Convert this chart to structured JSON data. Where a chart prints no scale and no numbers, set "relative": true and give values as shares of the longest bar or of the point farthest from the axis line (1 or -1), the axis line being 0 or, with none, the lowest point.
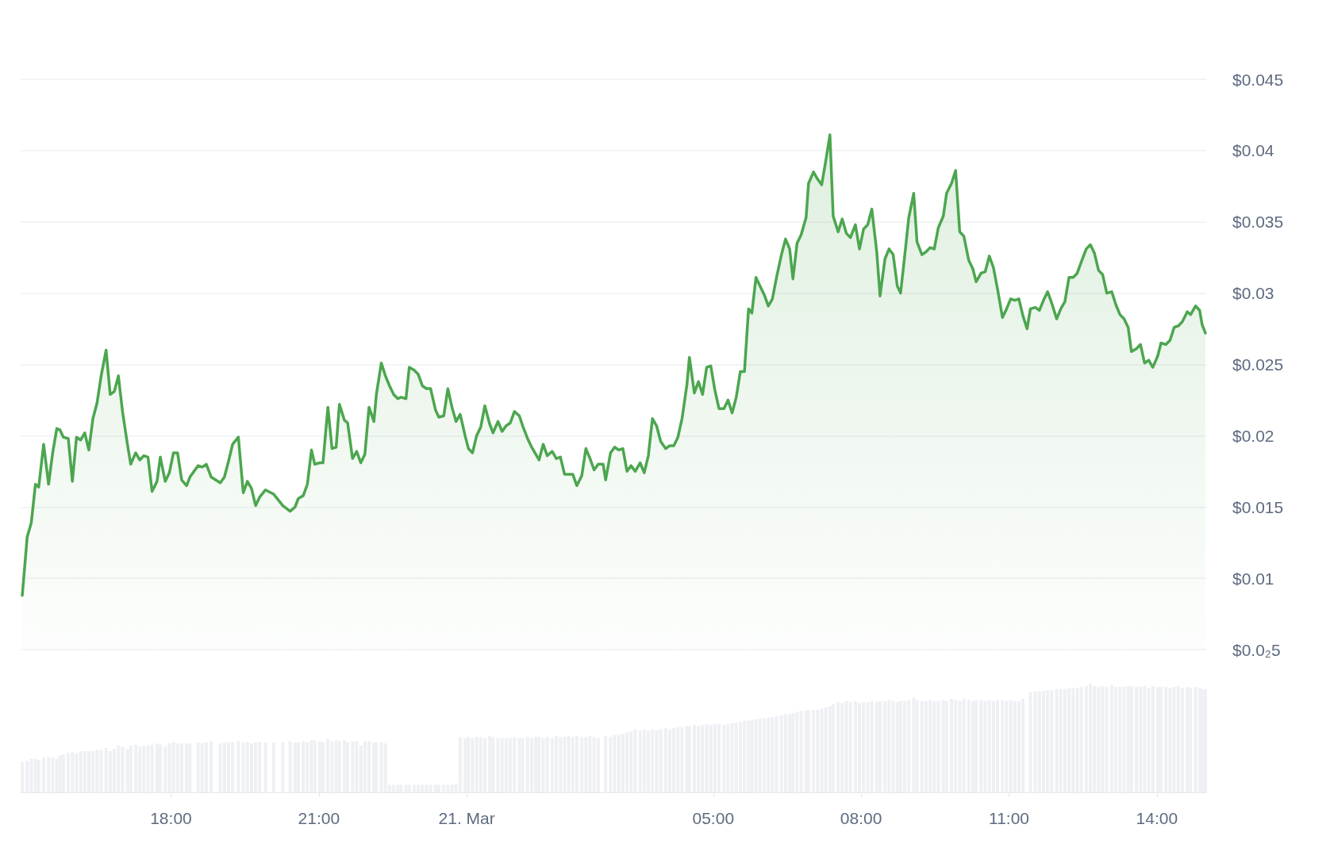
{
  "chart_data": [
    {
      "type": "area",
      "x": [
        "--03-20T14:59",
        "--03-20T15:05",
        "--03-20T15:10",
        "--03-20T15:15",
        "--03-20T15:19",
        "--03-20T15:25",
        "--03-20T15:31",
        "--03-20T15:36",
        "--03-20T15:41",
        "--03-20T15:45",
        "--03-20T15:49",
        "--03-20T15:55",
        "--03-20T16:00",
        "--03-20T16:05",
        "--03-20T16:10",
        "--03-20T16:15",
        "--03-20T16:20",
        "--03-20T16:25",
        "--03-20T16:30",
        "--03-20T16:35",
        "--03-20T16:41",
        "--03-20T16:46",
        "--03-20T16:51",
        "--03-20T16:56",
        "--03-20T17:01",
        "--03-20T17:07",
        "--03-20T17:11",
        "--03-20T17:17",
        "--03-20T17:22",
        "--03-20T17:27",
        "--03-20T17:32",
        "--03-20T17:37",
        "--03-20T17:43",
        "--03-20T17:47",
        "--03-20T17:53",
        "--03-20T17:58",
        "--03-20T18:03",
        "--03-20T18:08",
        "--03-20T18:13",
        "--03-20T18:19",
        "--03-20T18:23",
        "--03-20T18:33",
        "--03-20T18:38",
        "--03-20T18:43",
        "--03-20T18:49",
        "--03-20T19:00",
        "--03-20T19:05",
        "--03-20T19:10",
        "--03-20T19:15",
        "--03-20T19:22",
        "--03-20T19:28",
        "--03-20T19:33",
        "--03-20T19:38",
        "--03-20T19:43",
        "--03-20T19:48",
        "--03-20T19:55",
        "--03-20T20:05",
        "--03-20T20:16",
        "--03-20T20:25",
        "--03-20T20:31",
        "--03-20T20:35",
        "--03-20T20:41",
        "--03-20T20:46",
        "--03-20T20:51",
        "--03-20T20:55",
        "--03-20T21:01",
        "--03-20T21:05",
        "--03-20T21:11",
        "--03-20T21:16",
        "--03-20T21:21",
        "--03-20T21:25",
        "--03-20T21:31",
        "--03-20T21:35",
        "--03-20T21:41",
        "--03-20T21:46",
        "--03-20T21:51",
        "--03-20T21:56",
        "--03-20T22:01",
        "--03-20T22:07",
        "--03-20T22:10",
        "--03-20T22:16",
        "--03-20T22:21",
        "--03-20T22:26",
        "--03-20T22:31",
        "--03-20T22:36",
        "--03-20T22:40",
        "--03-20T22:46",
        "--03-20T22:50",
        "--03-20T22:56",
        "--03-20T23:01",
        "--03-20T23:06",
        "--03-20T23:11",
        "--03-20T23:16",
        "--03-20T23:22",
        "--03-20T23:26",
        "--03-20T23:32",
        "--03-20T23:37",
        "--03-20T23:42",
        "--03-20T23:47",
        "--03-20T23:52",
        "--03-20T23:58",
        "--03-21T00:02",
        "--03-21T00:07",
        "--03-21T00:12",
        "--03-21T00:17",
        "--03-21T00:22",
        "--03-21T00:28",
        "--03-21T00:32",
        "--03-21T00:38",
        "--03-21T00:43",
        "--03-21T00:48",
        "--03-21T00:53",
        "--03-21T00:58",
        "--03-21T01:04",
        "--03-21T01:08",
        "--03-21T01:14",
        "--03-21T01:19",
        "--03-21T01:24",
        "--03-21T01:28",
        "--03-21T01:33",
        "--03-21T01:38",
        "--03-21T01:44",
        "--03-21T01:49",
        "--03-21T01:54",
        "--03-21T01:59",
        "--03-21T02:04",
        "--03-21T02:09",
        "--03-21T02:14",
        "--03-21T02:20",
        "--03-21T02:25",
        "--03-21T02:30",
        "--03-21T02:35",
        "--03-21T02:40",
        "--03-21T02:46",
        "--03-21T02:49",
        "--03-21T02:55",
        "--03-21T03:00",
        "--03-21T03:05",
        "--03-21T03:10",
        "--03-21T03:15",
        "--03-21T03:20",
        "--03-21T03:25",
        "--03-21T03:31",
        "--03-21T03:36",
        "--03-21T03:41",
        "--03-21T03:46",
        "--03-21T03:51",
        "--03-21T03:56",
        "--03-21T04:02",
        "--03-21T04:07",
        "--03-21T04:12",
        "--03-21T04:17",
        "--03-21T04:22",
        "--03-21T04:28",
        "--03-21T04:31",
        "--03-21T04:37",
        "--03-21T04:42",
        "--03-21T04:47",
        "--03-21T04:52",
        "--03-21T04:57",
        "--03-21T05:02",
        "--03-21T05:07",
        "--03-21T05:13",
        "--03-21T05:18",
        "--03-21T05:23",
        "--03-21T05:28",
        "--03-21T05:33",
        "--03-21T05:38",
        "--03-21T05:43",
        "--03-21T05:47",
        "--03-21T05:52",
        "--03-21T05:57",
        "--03-21T06:02",
        "--03-21T06:07",
        "--03-21T06:12",
        "--03-21T06:17",
        "--03-21T06:23",
        "--03-21T06:28",
        "--03-21T06:33",
        "--03-21T06:37",
        "--03-21T06:42",
        "--03-21T06:47",
        "--03-21T06:53",
        "--03-21T06:56",
        "--03-21T07:02",
        "--03-21T07:07",
        "--03-21T07:12",
        "--03-21T07:17",
        "--03-21T07:22",
        "--03-21T07:26",
        "--03-21T07:32",
        "--03-21T07:37",
        "--03-21T07:42",
        "--03-21T07:47",
        "--03-21T07:53",
        "--03-21T07:58",
        "--03-21T08:03",
        "--03-21T08:08",
        "--03-21T08:13",
        "--03-21T08:19",
        "--03-21T08:23",
        "--03-21T08:29",
        "--03-21T08:34",
        "--03-21T08:39",
        "--03-21T08:44",
        "--03-21T08:48",
        "--03-21T08:53",
        "--03-21T08:58",
        "--03-21T09:04",
        "--03-21T09:08",
        "--03-21T09:14",
        "--03-21T09:19",
        "--03-21T09:24",
        "--03-21T09:29",
        "--03-21T09:34",
        "--03-21T09:40",
        "--03-21T09:44",
        "--03-21T09:50",
        "--03-21T09:55",
        "--03-21T10:00",
        "--03-21T10:05",
        "--03-21T10:11",
        "--03-21T10:16",
        "--03-21T10:20",
        "--03-21T10:26",
        "--03-21T10:31",
        "--03-21T10:36",
        "--03-21T10:41",
        "--03-21T10:46",
        "--03-21T10:52",
        "--03-21T10:57",
        "--03-21T11:02",
        "--03-21T11:07",
        "--03-21T11:12",
        "--03-21T11:17",
        "--03-21T11:22",
        "--03-21T11:26",
        "--03-21T11:32",
        "--03-21T11:37",
        "--03-21T11:42",
        "--03-21T11:47",
        "--03-21T11:52",
        "--03-21T11:58",
        "--03-21T12:03",
        "--03-21T12:08",
        "--03-21T12:13",
        "--03-21T12:18",
        "--03-21T12:23",
        "--03-21T12:28",
        "--03-21T12:34",
        "--03-21T12:39",
        "--03-21T12:44",
        "--03-21T12:49",
        "--03-21T12:54",
        "--03-21T12:59",
        "--03-21T13:05",
        "--03-21T13:10",
        "--03-21T13:15",
        "--03-21T13:20",
        "--03-21T13:25",
        "--03-21T13:29",
        "--03-21T13:35",
        "--03-21T13:40",
        "--03-21T13:45",
        "--03-21T13:50",
        "--03-21T13:55",
        "--03-21T14:01",
        "--03-21T14:05",
        "--03-21T14:11",
        "--03-21T14:16",
        "--03-21T14:21",
        "--03-21T14:26",
        "--03-21T14:31",
        "--03-21T14:37",
        "--03-21T14:41",
        "--03-21T14:47",
        "--03-21T14:52",
        "--03-21T14:55",
        "--03-21T14:59"
      ],
      "series": [
        {
          "color": "#4ca64f",
          "values": [
            0.0088,
            0.0129,
            0.0139,
            0.0166,
            0.0164,
            0.0194,
            0.0166,
            0.0188,
            0.0205,
            0.0204,
            0.0199,
            0.0198,
            0.0168,
            0.0199,
            0.0197,
            0.0202,
            0.019,
            0.0212,
            0.0223,
            0.0242,
            0.026,
            0.0229,
            0.0231,
            0.0242,
            0.0217,
            0.0194,
            0.018,
            0.0188,
            0.0183,
            0.0186,
            0.0185,
            0.0161,
            0.0168,
            0.0185,
            0.0168,
            0.0174,
            0.0188,
            0.0188,
            0.0169,
            0.0165,
            0.0171,
            0.0179,
            0.0178,
            0.018,
            0.0171,
            0.0167,
            0.0171,
            0.0182,
            0.0194,
            0.0199,
            0.016,
            0.0168,
            0.0163,
            0.0151,
            0.0157,
            0.0162,
            0.0159,
            0.0151,
            0.0147,
            0.015,
            0.0156,
            0.0158,
            0.0166,
            0.019,
            0.018,
            0.0181,
            0.0181,
            0.022,
            0.0191,
            0.0192,
            0.0222,
            0.0211,
            0.0209,
            0.0184,
            0.0189,
            0.0181,
            0.0187,
            0.022,
            0.021,
            0.0229,
            0.0251,
            0.0242,
            0.0235,
            0.0229,
            0.0226,
            0.0227,
            0.0226,
            0.0248,
            0.0246,
            0.0243,
            0.0235,
            0.0233,
            0.0233,
            0.0218,
            0.0213,
            0.0214,
            0.0233,
            0.022,
            0.021,
            0.0215,
            0.02,
            0.0191,
            0.0188,
            0.02,
            0.0206,
            0.0221,
            0.0208,
            0.0202,
            0.021,
            0.0203,
            0.0207,
            0.0209,
            0.0217,
            0.0214,
            0.0207,
            0.0198,
            0.0192,
            0.0187,
            0.0183,
            0.0194,
            0.0186,
            0.0189,
            0.0184,
            0.0185,
            0.0173,
            0.0173,
            0.0173,
            0.0165,
            0.0172,
            0.0191,
            0.0184,
            0.0176,
            0.018,
            0.018,
            0.0169,
            0.0188,
            0.0192,
            0.019,
            0.0191,
            0.0175,
            0.0179,
            0.0175,
            0.0181,
            0.0174,
            0.0186,
            0.0212,
            0.0207,
            0.0196,
            0.0191,
            0.0193,
            0.0193,
            0.0199,
            0.0212,
            0.0236,
            0.0255,
            0.023,
            0.0238,
            0.0229,
            0.0248,
            0.0249,
            0.0232,
            0.0219,
            0.0219,
            0.0225,
            0.0216,
            0.0227,
            0.0245,
            0.0245,
            0.0289,
            0.0286,
            0.0311,
            0.0305,
            0.0299,
            0.0291,
            0.0296,
            0.0311,
            0.0327,
            0.0338,
            0.0331,
            0.031,
            0.0335,
            0.0341,
            0.0353,
            0.0377,
            0.0385,
            0.038,
            0.0376,
            0.0393,
            0.0411,
            0.0354,
            0.0343,
            0.0352,
            0.0342,
            0.0339,
            0.0348,
            0.0331,
            0.0345,
            0.0348,
            0.0359,
            0.0329,
            0.0298,
            0.0324,
            0.0331,
            0.0327,
            0.0305,
            0.03,
            0.0326,
            0.0353,
            0.037,
            0.0336,
            0.0327,
            0.0329,
            0.0332,
            0.0331,
            0.0346,
            0.0354,
            0.037,
            0.0377,
            0.0386,
            0.0343,
            0.034,
            0.0323,
            0.0317,
            0.0308,
            0.0314,
            0.0315,
            0.0326,
            0.0318,
            0.0303,
            0.0283,
            0.0289,
            0.0296,
            0.0295,
            0.0296,
            0.0284,
            0.0275,
            0.0289,
            0.029,
            0.0288,
            0.0295,
            0.0301,
            0.0293,
            0.0282,
            0.0289,
            0.0294,
            0.0311,
            0.0311,
            0.0314,
            0.0322,
            0.0331,
            0.0334,
            0.0328,
            0.0316,
            0.0313,
            0.03,
            0.0301,
            0.0292,
            0.0285,
            0.0282,
            0.0276,
            0.0259,
            0.0261,
            0.0264,
            0.0251,
            0.0253,
            0.0248,
            0.0256,
            0.0265,
            0.0264,
            0.0267,
            0.0276,
            0.0277,
            0.028,
            0.0287,
            0.0285,
            0.0291,
            0.0288,
            0.0278,
            0.0272
          ]
        }
      ],
      "xlim": [
        "--03-20T14:57",
        "--03-21T15:00"
      ],
      "ylim": [
        0.005,
        0.045
      ],
      "yticks": [
        {
          "value": 0.005,
          "label": "$0.0₂5"
        },
        {
          "value": 0.01,
          "label": "$0.01"
        },
        {
          "value": 0.015,
          "label": "$0.015"
        },
        {
          "value": 0.02,
          "label": "$0.02"
        },
        {
          "value": 0.025,
          "label": "$0.025"
        },
        {
          "value": 0.03,
          "label": "$0.03"
        },
        {
          "value": 0.035,
          "label": "$0.035"
        },
        {
          "value": 0.04,
          "label": "$0.04"
        },
        {
          "value": 0.045,
          "label": "$0.045"
        }
      ],
      "grid": "y",
      "tick_labels": "y",
      "marker": "none",
      "line_style": "solid"
    },
    {
      "type": "bar",
      "relative": true,
      "x": [
        "--03-20T14:59",
        "--03-20T15:05",
        "--03-20T15:10",
        "--03-20T15:15",
        "--03-20T15:19",
        "--03-20T15:25",
        "--03-20T15:31",
        "--03-20T15:36",
        "--03-20T15:41",
        "--03-20T15:45",
        "--03-20T15:49",
        "--03-20T15:55",
        "--03-20T16:00",
        "--03-20T16:05",
        "--03-20T16:10",
        "--03-20T16:15",
        "--03-20T16:20",
        "--03-20T16:25",
        "--03-20T16:30",
        "--03-20T16:35",
        "--03-20T16:41",
        "--03-20T16:46",
        "--03-20T16:51",
        "--03-20T16:56",
        "--03-20T17:01",
        "--03-20T17:07",
        "--03-20T17:11",
        "--03-20T17:17",
        "--03-20T17:22",
        "--03-20T17:27",
        "--03-20T17:32",
        "--03-20T17:37",
        "--03-20T17:43",
        "--03-20T17:47",
        "--03-20T17:53",
        "--03-20T17:58",
        "--03-20T18:03",
        "--03-20T18:08",
        "--03-20T18:13",
        "--03-20T18:19",
        "--03-20T18:23",
        "--03-20T18:33",
        "--03-20T18:38",
        "--03-20T18:43",
        "--03-20T18:49",
        "--03-20T19:00",
        "--03-20T19:05",
        "--03-20T19:10",
        "--03-20T19:15",
        "--03-20T19:22",
        "--03-20T19:28",
        "--03-20T19:33",
        "--03-20T19:38",
        "--03-20T19:43",
        "--03-20T19:48",
        "--03-20T19:55",
        "--03-20T20:05",
        "--03-20T20:16",
        "--03-20T20:25",
        "--03-20T20:31",
        "--03-20T20:35",
        "--03-20T20:41",
        "--03-20T20:46",
        "--03-20T20:51",
        "--03-20T20:55",
        "--03-20T21:01",
        "--03-20T21:05",
        "--03-20T21:11",
        "--03-20T21:16",
        "--03-20T21:21",
        "--03-20T21:25",
        "--03-20T21:31",
        "--03-20T21:35",
        "--03-20T21:41",
        "--03-20T21:46",
        "--03-20T21:51",
        "--03-20T21:56",
        "--03-20T22:01",
        "--03-20T22:07",
        "--03-20T22:10",
        "--03-20T22:16",
        "--03-20T22:21",
        "--03-20T22:26",
        "--03-20T22:31",
        "--03-20T22:36",
        "--03-20T22:40",
        "--03-20T22:46",
        "--03-20T22:50",
        "--03-20T22:56",
        "--03-20T23:01",
        "--03-20T23:06",
        "--03-20T23:11",
        "--03-20T23:16",
        "--03-20T23:22",
        "--03-20T23:26",
        "--03-20T23:32",
        "--03-20T23:37",
        "--03-20T23:42",
        "--03-20T23:47",
        "--03-20T23:52",
        "--03-20T23:58",
        "--03-21T00:02",
        "--03-21T00:07",
        "--03-21T00:12",
        "--03-21T00:17",
        "--03-21T00:22",
        "--03-21T00:28",
        "--03-21T00:32",
        "--03-21T00:38",
        "--03-21T00:43",
        "--03-21T00:48",
        "--03-21T00:53",
        "--03-21T00:58",
        "--03-21T01:04",
        "--03-21T01:08",
        "--03-21T01:14",
        "--03-21T01:19",
        "--03-21T01:24",
        "--03-21T01:28",
        "--03-21T01:33",
        "--03-21T01:38",
        "--03-21T01:44",
        "--03-21T01:49",
        "--03-21T01:54",
        "--03-21T01:59",
        "--03-21T02:04",
        "--03-21T02:09",
        "--03-21T02:14",
        "--03-21T02:20",
        "--03-21T02:25",
        "--03-21T02:30",
        "--03-21T02:35",
        "--03-21T02:40",
        "--03-21T02:46",
        "--03-21T02:49",
        "--03-21T02:55",
        "--03-21T03:00",
        "--03-21T03:05",
        "--03-21T03:10",
        "--03-21T03:15",
        "--03-21T03:20",
        "--03-21T03:25",
        "--03-21T03:31",
        "--03-21T03:36",
        "--03-21T03:41",
        "--03-21T03:46",
        "--03-21T03:51",
        "--03-21T03:56",
        "--03-21T04:02",
        "--03-21T04:07",
        "--03-21T04:12",
        "--03-21T04:17",
        "--03-21T04:22",
        "--03-21T04:28",
        "--03-21T04:31",
        "--03-21T04:37",
        "--03-21T04:42",
        "--03-21T04:47",
        "--03-21T04:52",
        "--03-21T04:57",
        "--03-21T05:02",
        "--03-21T05:07",
        "--03-21T05:13",
        "--03-21T05:18",
        "--03-21T05:23",
        "--03-21T05:28",
        "--03-21T05:33",
        "--03-21T05:38",
        "--03-21T05:43",
        "--03-21T05:47",
        "--03-21T05:52",
        "--03-21T05:57",
        "--03-21T06:02",
        "--03-21T06:07",
        "--03-21T06:12",
        "--03-21T06:17",
        "--03-21T06:23",
        "--03-21T06:28",
        "--03-21T06:33",
        "--03-21T06:37",
        "--03-21T06:42",
        "--03-21T06:47",
        "--03-21T06:53",
        "--03-21T06:56",
        "--03-21T07:02",
        "--03-21T07:07",
        "--03-21T07:12",
        "--03-21T07:17",
        "--03-21T07:22",
        "--03-21T07:26",
        "--03-21T07:32",
        "--03-21T07:37",
        "--03-21T07:42",
        "--03-21T07:47",
        "--03-21T07:53",
        "--03-21T07:58",
        "--03-21T08:03",
        "--03-21T08:08",
        "--03-21T08:13",
        "--03-21T08:19",
        "--03-21T08:23",
        "--03-21T08:29",
        "--03-21T08:34",
        "--03-21T08:39",
        "--03-21T08:44",
        "--03-21T08:48",
        "--03-21T08:53",
        "--03-21T08:58",
        "--03-21T09:04",
        "--03-21T09:08",
        "--03-21T09:14",
        "--03-21T09:19",
        "--03-21T09:24",
        "--03-21T09:29",
        "--03-21T09:34",
        "--03-21T09:40",
        "--03-21T09:44",
        "--03-21T09:50",
        "--03-21T09:55",
        "--03-21T10:00",
        "--03-21T10:05",
        "--03-21T10:11",
        "--03-21T10:16",
        "--03-21T10:20",
        "--03-21T10:26",
        "--03-21T10:31",
        "--03-21T10:36",
        "--03-21T10:41",
        "--03-21T10:46",
        "--03-21T10:52",
        "--03-21T10:57",
        "--03-21T11:02",
        "--03-21T11:07",
        "--03-21T11:12",
        "--03-21T11:17",
        "--03-21T11:22",
        "--03-21T11:26",
        "--03-21T11:32",
        "--03-21T11:37",
        "--03-21T11:42",
        "--03-21T11:47",
        "--03-21T11:52",
        "--03-21T11:58",
        "--03-21T12:03",
        "--03-21T12:08",
        "--03-21T12:13",
        "--03-21T12:18",
        "--03-21T12:23",
        "--03-21T12:28",
        "--03-21T12:34",
        "--03-21T12:39",
        "--03-21T12:44",
        "--03-21T12:49",
        "--03-21T12:54",
        "--03-21T12:59",
        "--03-21T13:05",
        "--03-21T13:10",
        "--03-21T13:15",
        "--03-21T13:20",
        "--03-21T13:25",
        "--03-21T13:29",
        "--03-21T13:35",
        "--03-21T13:40",
        "--03-21T13:45",
        "--03-21T13:50",
        "--03-21T13:55",
        "--03-21T14:01",
        "--03-21T14:05",
        "--03-21T14:11",
        "--03-21T14:16",
        "--03-21T14:21",
        "--03-21T14:26",
        "--03-21T14:31",
        "--03-21T14:37",
        "--03-21T14:41",
        "--03-21T14:47",
        "--03-21T14:52",
        "--03-21T14:55",
        "--03-21T14:59"
      ],
      "series": [
        {
          "color": "#eef0f4",
          "values": [
            0.28,
            0.29,
            0.31,
            0.31,
            0.3,
            0.32,
            0.32,
            0.32,
            0.31,
            0.34,
            0.35,
            0.36,
            0.37,
            0.36,
            0.38,
            0.38,
            0.38,
            0.38,
            0.39,
            0.39,
            0.41,
            0.38,
            0.4,
            0.43,
            0.42,
            0.4,
            0.43,
            0.44,
            0.42,
            0.43,
            0.43,
            0.44,
            0.45,
            0.44,
            0.42,
            0.45,
            0.46,
            0.45,
            0.45,
            0.45,
            0.45,
            0.46,
            0.45,
            0.46,
            0.47,
            0.45,
            0.46,
            0.46,
            0.46,
            0.47,
            0.46,
            0.46,
            0.45,
            0.46,
            0.46,
            0.46,
            0.46,
            0.46,
            0.47,
            0.46,
            0.46,
            0.47,
            0.46,
            0.48,
            0.48,
            0.47,
            0.46,
            0.49,
            0.47,
            0.48,
            0.47,
            0.48,
            0.46,
            0.47,
            0.47,
            0.43,
            0.47,
            0.47,
            0.46,
            0.46,
            0.46,
            0.45,
            0.07,
            0.07,
            0.07,
            0.07,
            0.07,
            0.07,
            0.07,
            0.07,
            0.07,
            0.07,
            0.07,
            0.07,
            0.07,
            0.07,
            0.07,
            0.07,
            0.08,
            0.51,
            0.5,
            0.51,
            0.5,
            0.51,
            0.51,
            0.5,
            0.52,
            0.51,
            0.5,
            0.5,
            0.5,
            0.5,
            0.51,
            0.5,
            0.5,
            0.51,
            0.5,
            0.51,
            0.51,
            0.5,
            0.51,
            0.5,
            0.52,
            0.51,
            0.51,
            0.52,
            0.51,
            0.52,
            0.51,
            0.51,
            0.52,
            0.51,
            0.5,
            null,
            0.52,
            0.51,
            0.53,
            0.53,
            0.54,
            0.55,
            0.56,
            0.58,
            0.57,
            0.58,
            0.57,
            0.58,
            0.57,
            0.58,
            0.59,
            0.58,
            0.59,
            0.6,
            0.6,
            0.61,
            0.61,
            0.62,
            0.61,
            0.62,
            0.63,
            0.62,
            0.63,
            0.63,
            0.62,
            0.63,
            0.64,
            0.64,
            0.65,
            0.66,
            0.66,
            0.67,
            0.67,
            0.68,
            0.68,
            0.69,
            0.69,
            0.7,
            0.71,
            0.72,
            0.72,
            0.73,
            0.74,
            0.75,
            0.75,
            0.76,
            0.76,
            0.76,
            0.77,
            0.78,
            0.79,
            0.81,
            0.83,
            0.82,
            0.84,
            0.83,
            0.84,
            0.82,
            0.83,
            0.83,
            0.84,
            0.83,
            0.84,
            0.84,
            0.85,
            0.84,
            0.83,
            0.84,
            0.84,
            0.85,
            0.87,
            0.85,
            0.84,
            0.84,
            0.85,
            0.84,
            0.84,
            0.85,
            0.84,
            0.86,
            0.85,
            0.84,
            0.86,
            0.85,
            0.84,
            0.85,
            0.85,
            0.84,
            0.85,
            0.84,
            0.85,
            0.85,
            0.84,
            0.85,
            0.84,
            0.84,
            0.86,
            null,
            0.92,
            0.93,
            0.93,
            0.93,
            0.94,
            0.94,
            0.95,
            0.95,
            0.95,
            0.96,
            0.96,
            0.96,
            0.97,
            0.98,
            1.0,
            0.98,
            0.97,
            0.98,
            0.97,
            0.99,
            0.97,
            0.97,
            0.97,
            0.98,
            0.98,
            0.97,
            0.97,
            0.98,
            0.96,
            0.98,
            0.97,
            0.97,
            0.97,
            0.96,
            0.97,
            0.98,
            0.96,
            0.97,
            0.96,
            0.97,
            0.96,
            0.95,
            0.95
          ]
        }
      ],
      "xlim": [
        "--03-20T14:57",
        "--03-21T15:00"
      ],
      "xticks": [
        {
          "value": "--03-20T18:00",
          "label": "18:00"
        },
        {
          "value": "--03-20T21:00",
          "label": "21:00"
        },
        {
          "value": "--03-21T00:00",
          "label": "21. Mar"
        },
        {
          "value": "--03-21T05:00",
          "label": "05:00"
        },
        {
          "value": "--03-21T08:00",
          "label": "08:00"
        },
        {
          "value": "--03-21T11:00",
          "label": "11:00"
        },
        {
          "value": "--03-21T14:00",
          "label": "14:00"
        }
      ],
      "tick_labels": "x",
      "grid": false
    }
  ]
}
